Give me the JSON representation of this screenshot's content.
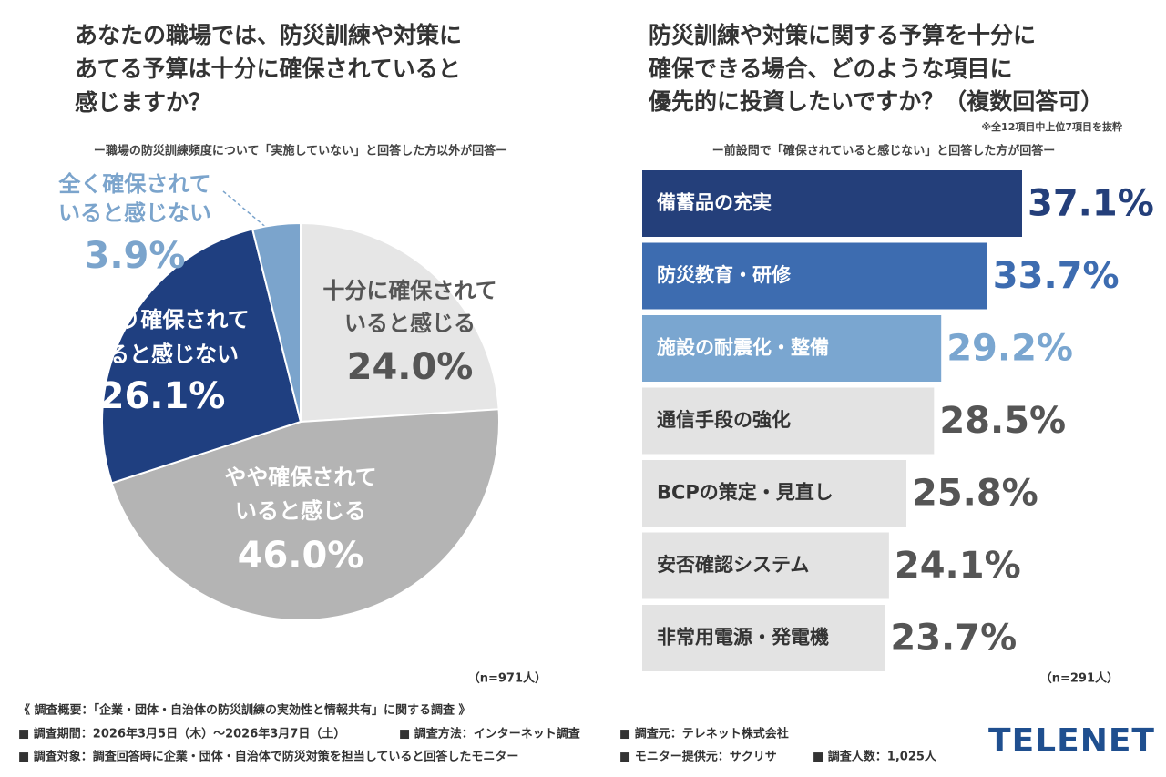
{
  "chart_data": [
    {
      "type": "pie",
      "title": [
        "あなたの職場では、防災訓練や対策に",
        "あてる予算は十分に確保されていると",
        "感じますか？"
      ],
      "subtitle": "ー職場の防災訓練頻度について「実施していない」と回答した方以外が回答ー",
      "categories": [
        [
          "十分に確保されて",
          "いると感じる"
        ],
        [
          "やや確保されて",
          "いると感じる"
        ],
        [
          "あまり確保されて",
          "いると感じない"
        ],
        [
          "全く確保されて",
          "いると感じない"
        ]
      ],
      "values": [
        24.0,
        46.0,
        26.1,
        3.9
      ],
      "value_labels": [
        "24.0%",
        "46.0%",
        "26.1%",
        "3.9%"
      ],
      "colors": [
        "#e6e6e6",
        "#b4b4b4",
        "#1f3f80",
        "#7ba4cc"
      ],
      "note": "（n=971人）"
    },
    {
      "type": "bar",
      "orientation": "horizontal",
      "title": [
        "防災訓練や対策に関する予算を十分に",
        "確保できる場合、どのような項目に",
        "優先的に投資したいですか？（複数回答可）"
      ],
      "annotation": "※全12項目中上位7項目を抜粋",
      "subtitle": "ー前設問で「確保されていると感じない」と回答した方が回答ー",
      "categories": [
        "備蓄品の充実",
        "防災教育・研修",
        "施設の耐震化・整備",
        "通信手段の強化",
        "BCPの策定・見直し",
        "安否確認システム",
        "非常用電源・発電機"
      ],
      "values": [
        37.1,
        33.7,
        29.2,
        28.5,
        25.8,
        24.1,
        23.7
      ],
      "value_labels": [
        "37.1%",
        "33.7%",
        "29.2%",
        "28.5%",
        "25.8%",
        "24.1%",
        "23.7%"
      ],
      "colors": [
        "#243f7a",
        "#3d6cb0",
        "#7aa6d0",
        "#e3e3e3",
        "#e3e3e3",
        "#e3e3e3",
        "#e3e3e3"
      ],
      "note": "（n=291人）"
    }
  ],
  "footer": {
    "heading": "《 調査概要：「企業・団体・自治体の防災訓練の実効性と情報共有」に関する調査 》",
    "period": "■ 調査期間：2026年3月5日（木）～2026年3月7日（土）",
    "method": "■ 調査方法：インターネット調査",
    "source": "■ 調査元：テレネット株式会社",
    "target": "■ 調査対象：調査回答時に企業・団体・自治体で防災対策を担当していると回答したモニター",
    "provider": "■ モニター提供元：サクリサ",
    "count": "■ 調査人数：1,025人",
    "logo": "TELENET"
  }
}
